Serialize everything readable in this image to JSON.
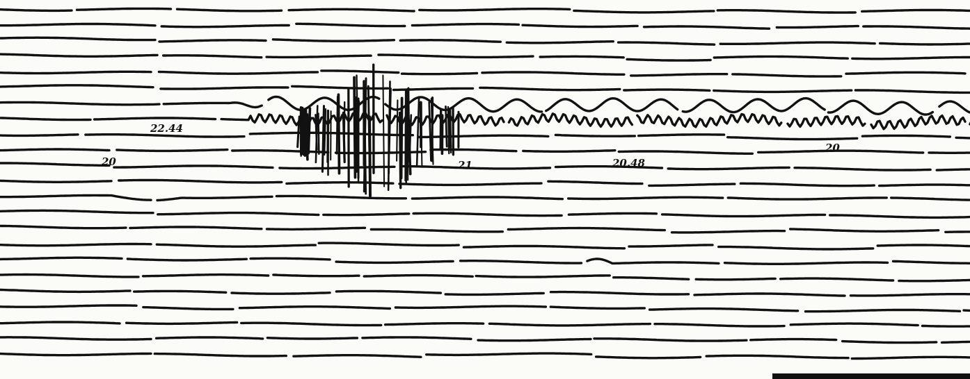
{
  "annotations": [
    {
      "text": "22.44"
    },
    {
      "text": "20"
    },
    {
      "text": "21"
    },
    {
      "text": "20.48"
    },
    {
      "text": "20"
    }
  ]
}
